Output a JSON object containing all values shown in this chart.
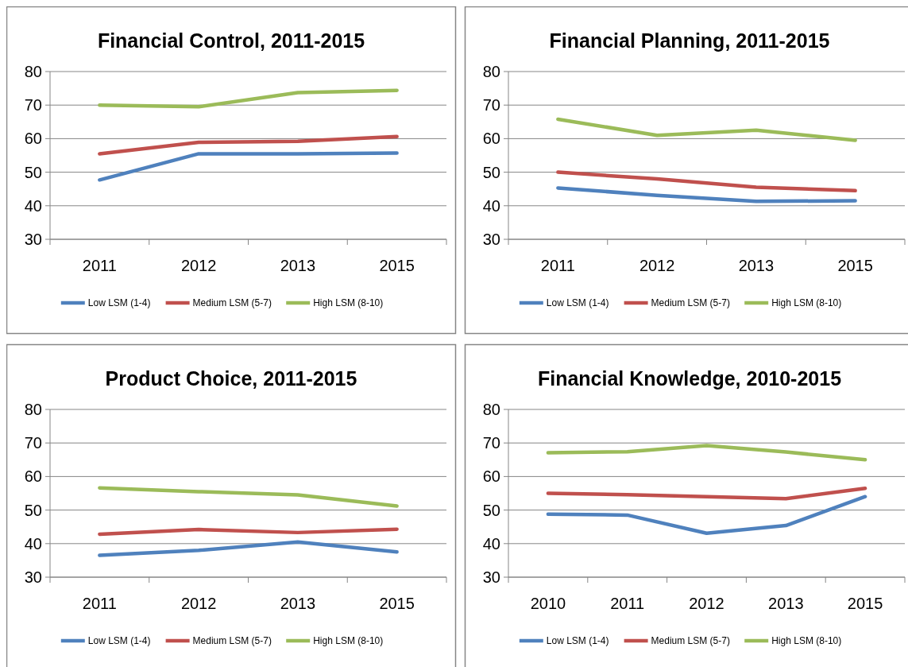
{
  "chart_data": [
    {
      "type": "line",
      "title": "Financial Control, 2011-2015",
      "categories": [
        "2011",
        "2012",
        "2013",
        "2015"
      ],
      "ylim": [
        30,
        80
      ],
      "yticks": [
        30,
        40,
        50,
        60,
        70,
        80
      ],
      "grid": "y",
      "legend": "bottom",
      "series": [
        {
          "name": "Low LSM (1-4)",
          "color": "#4f81bd",
          "values": [
            47.7,
            55.5,
            55.5,
            55.7
          ]
        },
        {
          "name": "Medium LSM (5-7)",
          "color": "#c0504d",
          "values": [
            55.5,
            58.9,
            59.2,
            60.6
          ]
        },
        {
          "name": "High LSM (8-10)",
          "color": "#9bbb59",
          "values": [
            70,
            69.5,
            73.7,
            74.4
          ]
        }
      ]
    },
    {
      "type": "line",
      "title": "Financial Planning, 2011-2015",
      "categories": [
        "2011",
        "2012",
        "2013",
        "2015"
      ],
      "ylim": [
        30,
        80
      ],
      "yticks": [
        30,
        40,
        50,
        60,
        70,
        80
      ],
      "grid": "y",
      "legend": "bottom",
      "series": [
        {
          "name": "Low LSM (1-4)",
          "color": "#4f81bd",
          "values": [
            45.3,
            43.1,
            41.3,
            41.5
          ]
        },
        {
          "name": "Medium LSM (5-7)",
          "color": "#c0504d",
          "values": [
            50,
            48,
            45.5,
            44.5
          ]
        },
        {
          "name": "High LSM (8-10)",
          "color": "#9bbb59",
          "values": [
            65.8,
            61,
            62.5,
            59.5
          ]
        }
      ]
    },
    {
      "type": "line",
      "title": "Product Choice, 2011-2015",
      "categories": [
        "2011",
        "2012",
        "2013",
        "2015"
      ],
      "ylim": [
        30,
        80
      ],
      "yticks": [
        30,
        40,
        50,
        60,
        70,
        80
      ],
      "grid": "y",
      "legend": "bottom",
      "series": [
        {
          "name": "Low LSM (1-4)",
          "color": "#4f81bd",
          "values": [
            36.5,
            38,
            40.5,
            37.5
          ]
        },
        {
          "name": "Medium LSM (5-7)",
          "color": "#c0504d",
          "values": [
            42.8,
            44.2,
            43.3,
            44.3
          ]
        },
        {
          "name": "High LSM (8-10)",
          "color": "#9bbb59",
          "values": [
            56.6,
            55.5,
            54.5,
            51.2
          ]
        }
      ]
    },
    {
      "type": "line",
      "title": "Financial Knowledge, 2010-2015",
      "categories": [
        "2010",
        "2011",
        "2012",
        "2013",
        "2015"
      ],
      "ylim": [
        30,
        80
      ],
      "yticks": [
        30,
        40,
        50,
        60,
        70,
        80
      ],
      "grid": "y",
      "legend": "bottom",
      "series": [
        {
          "name": "Low LSM (1-4)",
          "color": "#4f81bd",
          "values": [
            48.8,
            48.5,
            43.1,
            45.4,
            54
          ]
        },
        {
          "name": "Medium LSM (5-7)",
          "color": "#c0504d",
          "values": [
            55,
            54.6,
            54,
            53.4,
            56.5
          ]
        },
        {
          "name": "High LSM (8-10)",
          "color": "#9bbb59",
          "values": [
            67.1,
            67.4,
            69.2,
            67.3,
            65
          ]
        }
      ]
    }
  ]
}
